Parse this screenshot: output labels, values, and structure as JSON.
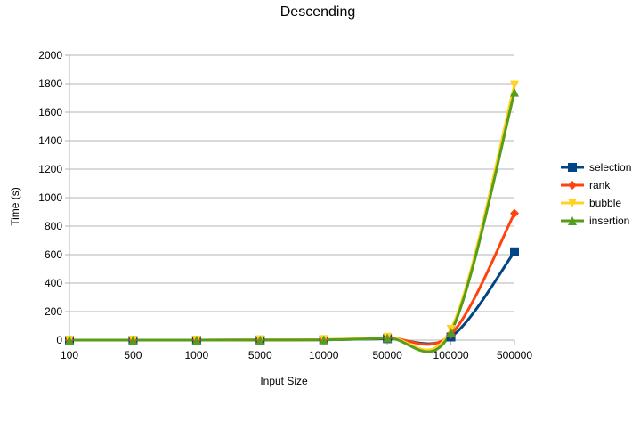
{
  "chart_data": {
    "type": "line",
    "title": "Descending",
    "xlabel": "Input Size",
    "ylabel": "Time (s)",
    "categories": [
      "100",
      "500",
      "1000",
      "5000",
      "10000",
      "50000",
      "100000",
      "500000"
    ],
    "ylim": [
      0,
      2000
    ],
    "yticks": [
      0,
      200,
      400,
      600,
      800,
      1000,
      1200,
      1400,
      1600,
      1800,
      2000
    ],
    "grid": "horizontal",
    "legend_position": "right",
    "series": [
      {
        "name": "selection",
        "color": "#004586",
        "marker": "square",
        "values": [
          0,
          0,
          0,
          0.5,
          2,
          10,
          22,
          620
        ]
      },
      {
        "name": "rank",
        "color": "#ff420e",
        "marker": "diamond",
        "values": [
          0,
          0,
          0,
          1,
          3,
          15,
          40,
          890
        ]
      },
      {
        "name": "bubble",
        "color": "#ffd320",
        "marker": "triangle-down",
        "values": [
          0,
          0,
          0,
          2,
          4,
          20,
          75,
          1790
        ]
      },
      {
        "name": "insertion",
        "color": "#579d1c",
        "marker": "triangle-up",
        "values": [
          0,
          0,
          0,
          1,
          2,
          15,
          55,
          1740
        ]
      }
    ]
  }
}
